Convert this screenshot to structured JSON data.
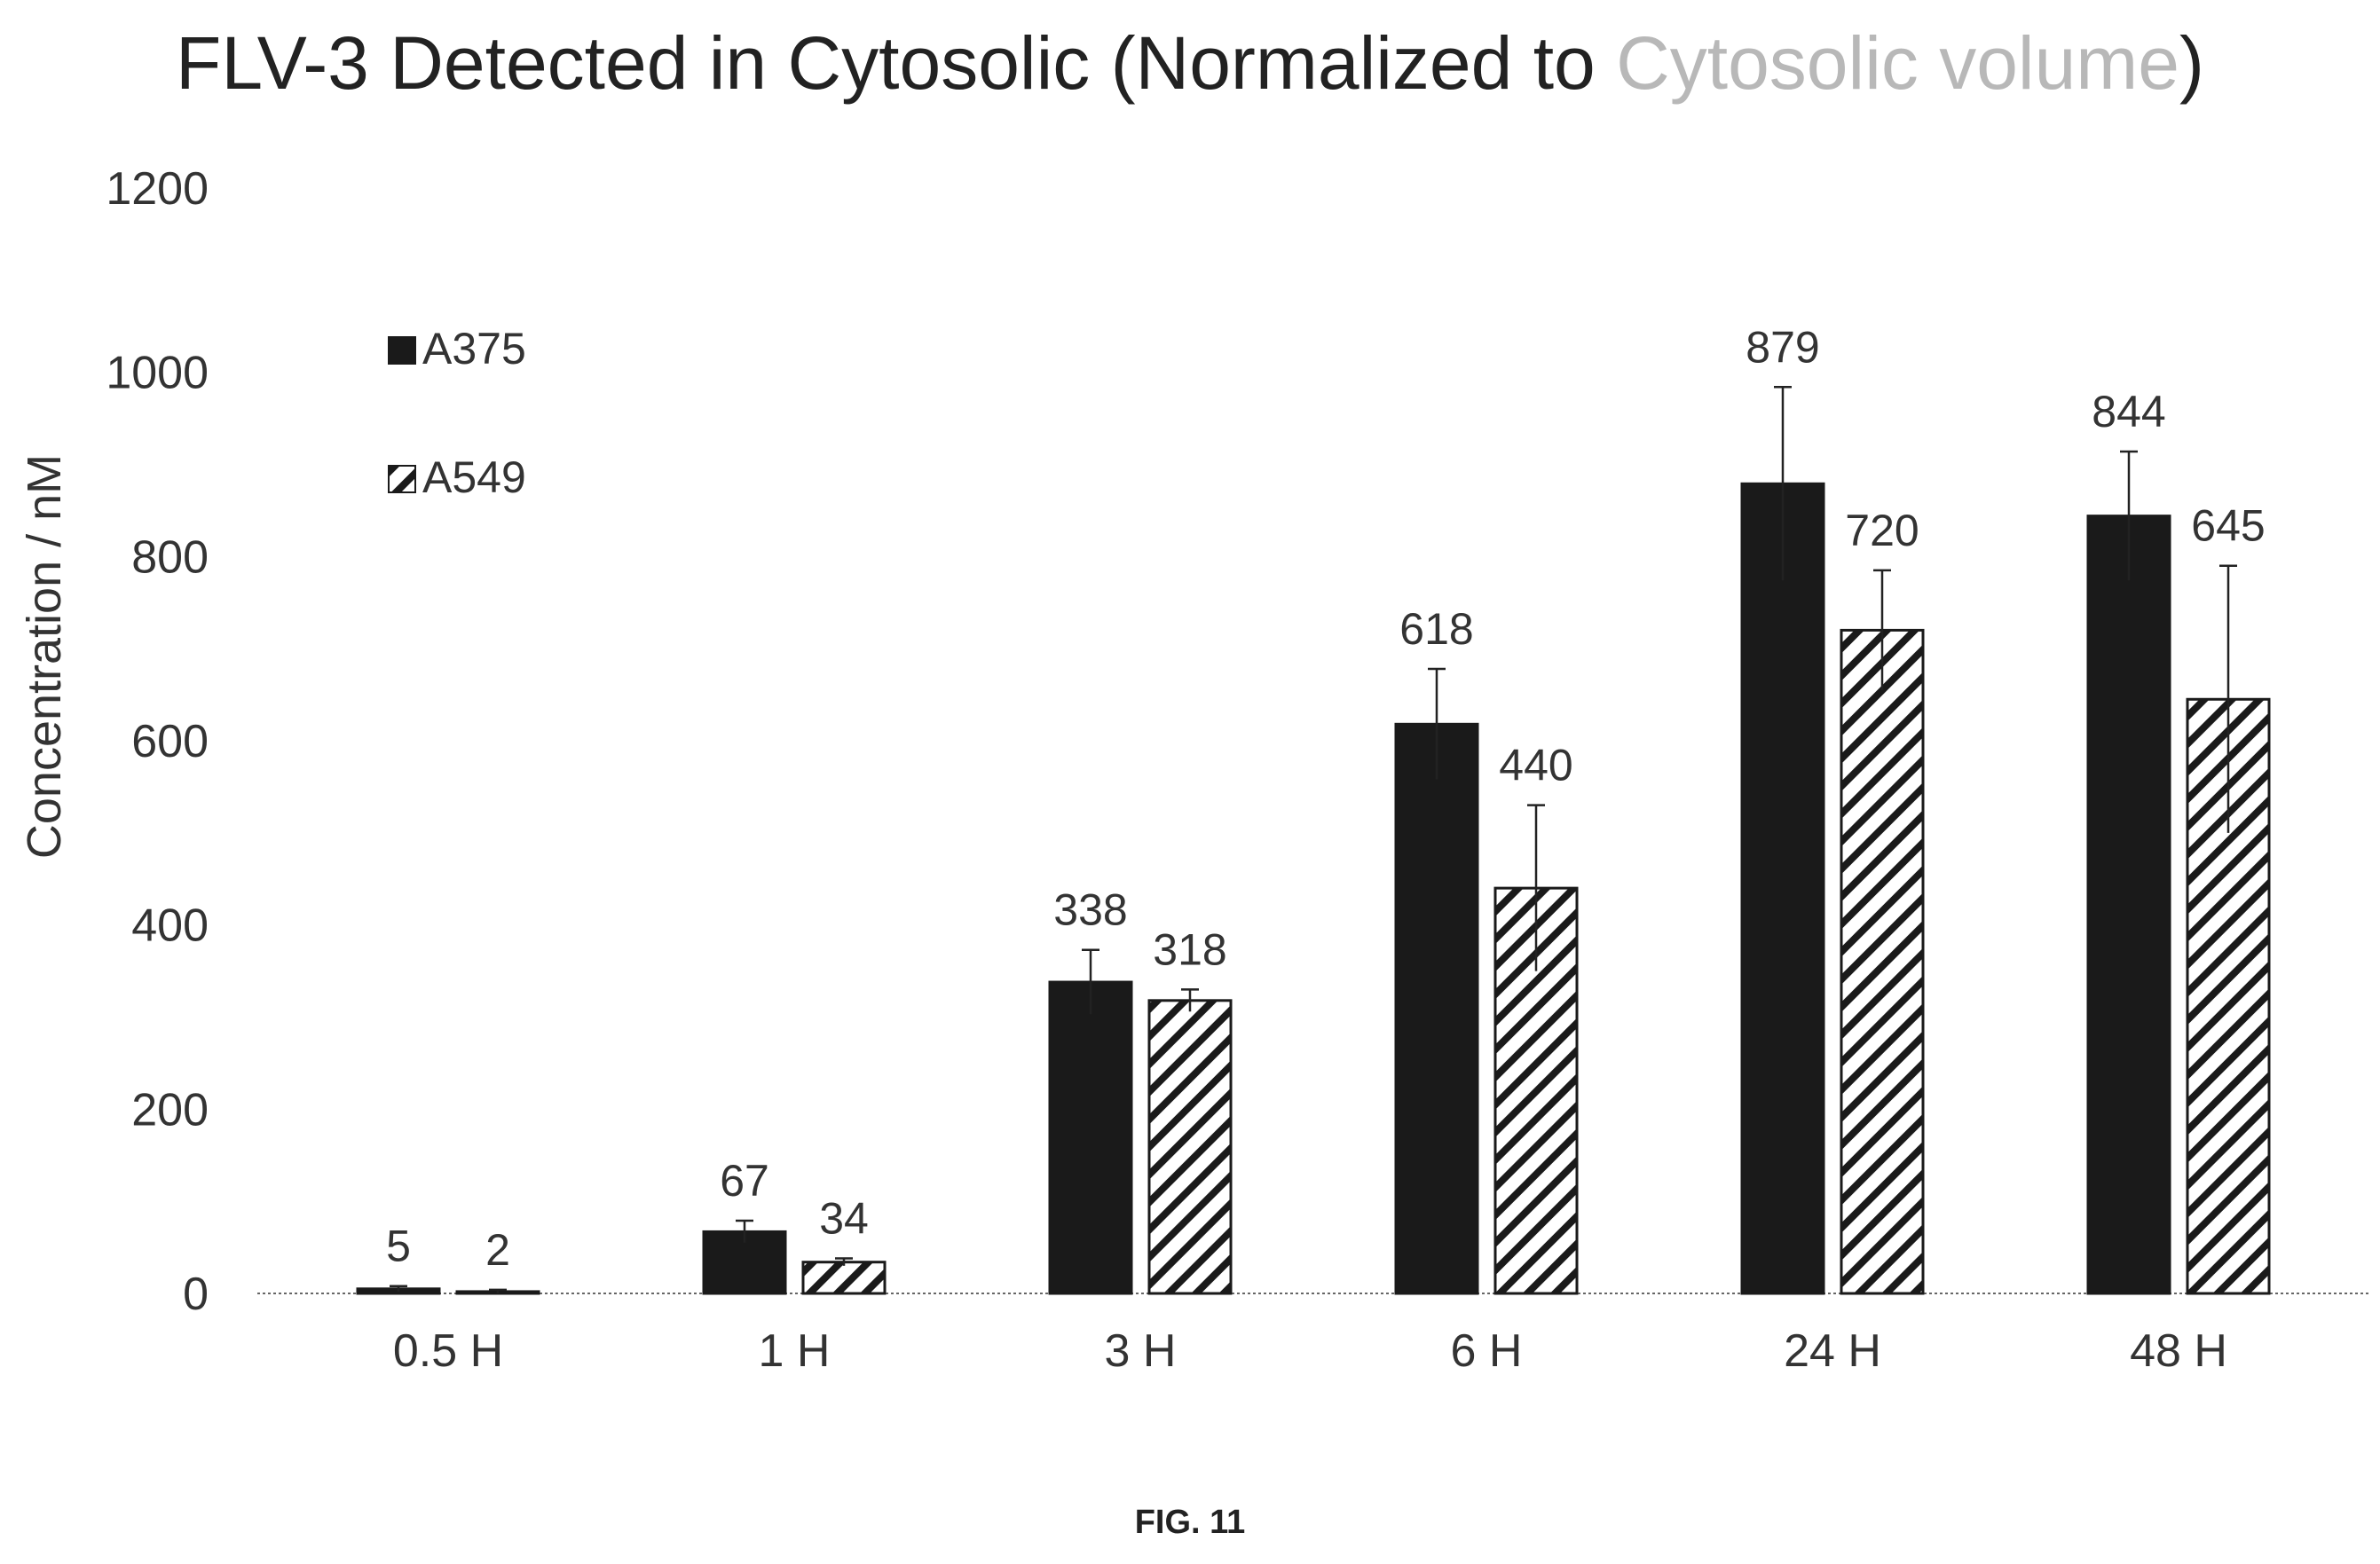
{
  "chart_data": {
    "type": "bar",
    "title_parts": [
      "FLV-3 Detected in Cytosolic (Normalized to ",
      "Cytosolic volume",
      ")"
    ],
    "ylabel": "Concentration / nM",
    "xlabel": "",
    "categories": [
      "0.5 H",
      "1 H",
      "3 H",
      "6 H",
      "24 H",
      "48 H"
    ],
    "ylim": [
      0,
      1200
    ],
    "yticks": [
      0,
      200,
      400,
      600,
      800,
      1000,
      1200
    ],
    "legend_position": "top-left",
    "grid": false,
    "series": [
      {
        "name": "A375",
        "pattern": "solid",
        "color": "#1a1a1a",
        "values": [
          5,
          67,
          338,
          618,
          879,
          844
        ],
        "labels": [
          "5",
          "67",
          "338",
          "618",
          "879",
          "844"
        ],
        "error": [
          3,
          12,
          35,
          60,
          105,
          70
        ]
      },
      {
        "name": "A549",
        "pattern": "hatched",
        "color": "#1a1a1a",
        "values": [
          2,
          34,
          318,
          440,
          720,
          645
        ],
        "labels": [
          "2",
          "34",
          "318",
          "440",
          "720",
          "645"
        ],
        "error": [
          2,
          4,
          12,
          90,
          65,
          145
        ]
      }
    ]
  },
  "caption": "FIG. 11",
  "colors": {
    "title": "#222222",
    "title_light": "#b8b8b8",
    "axis_text": "#333333",
    "bars": "#1a1a1a"
  }
}
